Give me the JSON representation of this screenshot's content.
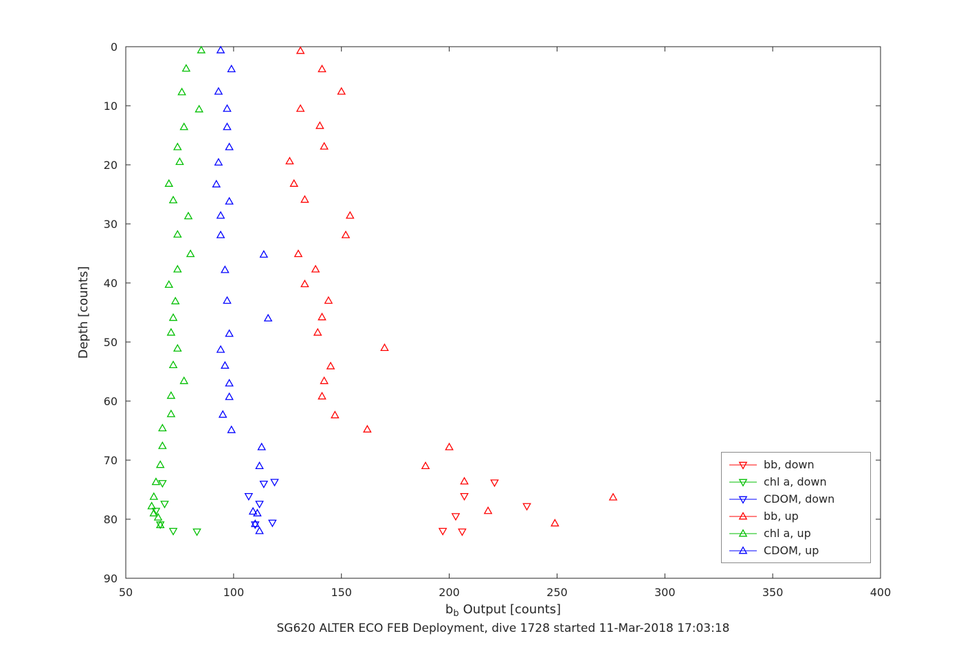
{
  "chart_data": {
    "type": "scatter",
    "title": "SG620 ALTER ECO FEB Deployment, dive 1728 started 11-Mar-2018 17:03:18",
    "ylabel": "Depth [counts]",
    "xlabel": {
      "main": "b",
      "sub": "b",
      "rest": "Output [counts]"
    },
    "xlim": [
      50,
      400
    ],
    "ylim": [
      0,
      90
    ],
    "y_inverted": true,
    "grid": false,
    "xticks": [
      50,
      100,
      150,
      200,
      250,
      300,
      350,
      400
    ],
    "yticks": [
      0,
      10,
      20,
      30,
      40,
      50,
      60,
      70,
      80,
      90
    ],
    "axis_color": "#262626",
    "legend_position": "lower-right",
    "series": [
      {
        "name": "bb, down",
        "color": "#ff0000",
        "marker": "triangle-down",
        "points": [
          [
            221,
            73.8
          ],
          [
            207,
            76.1
          ],
          [
            236,
            77.8
          ],
          [
            203,
            79.5
          ],
          [
            197,
            82.0
          ],
          [
            206,
            82.1
          ]
        ]
      },
      {
        "name": "chl a, down",
        "color": "#00bf00",
        "marker": "triangle-down",
        "points": [
          [
            67,
            73.9
          ],
          [
            68,
            77.4
          ],
          [
            64,
            78.6
          ],
          [
            66,
            80.9
          ],
          [
            72,
            82.0
          ],
          [
            83,
            82.1
          ]
        ]
      },
      {
        "name": "CDOM, down",
        "color": "#0000ff",
        "marker": "triangle-down",
        "points": [
          [
            119,
            73.7
          ],
          [
            114,
            74.0
          ],
          [
            107,
            76.1
          ],
          [
            112,
            77.4
          ],
          [
            118,
            80.6
          ],
          [
            110,
            80.9
          ]
        ]
      },
      {
        "name": "bb, up",
        "color": "#ff0000",
        "marker": "triangle-up",
        "points": [
          [
            131,
            0.7
          ],
          [
            141,
            3.8
          ],
          [
            150,
            7.6
          ],
          [
            131,
            10.5
          ],
          [
            140,
            13.4
          ],
          [
            142,
            16.9
          ],
          [
            126,
            19.4
          ],
          [
            128,
            23.2
          ],
          [
            133,
            25.9
          ],
          [
            154,
            28.6
          ],
          [
            152,
            31.9
          ],
          [
            130,
            35.1
          ],
          [
            138,
            37.7
          ],
          [
            133,
            40.2
          ],
          [
            144,
            43.0
          ],
          [
            141,
            45.8
          ],
          [
            139,
            48.4
          ],
          [
            170,
            51.0
          ],
          [
            145,
            54.1
          ],
          [
            142,
            56.6
          ],
          [
            141,
            59.2
          ],
          [
            147,
            62.4
          ],
          [
            162,
            64.8
          ],
          [
            200,
            67.8
          ],
          [
            189,
            71.0
          ],
          [
            207,
            73.6
          ],
          [
            218,
            78.6
          ],
          [
            249,
            80.7
          ],
          [
            276,
            76.3
          ]
        ]
      },
      {
        "name": "chl a, up",
        "color": "#00bf00",
        "marker": "triangle-up",
        "points": [
          [
            85,
            0.6
          ],
          [
            78,
            3.7
          ],
          [
            76,
            7.7
          ],
          [
            84,
            10.6
          ],
          [
            77,
            13.6
          ],
          [
            74,
            17.0
          ],
          [
            75,
            19.5
          ],
          [
            70,
            23.2
          ],
          [
            72,
            26.0
          ],
          [
            79,
            28.7
          ],
          [
            74,
            31.8
          ],
          [
            80,
            35.1
          ],
          [
            74,
            37.7
          ],
          [
            70,
            40.3
          ],
          [
            73,
            43.1
          ],
          [
            72,
            45.9
          ],
          [
            71,
            48.4
          ],
          [
            74,
            51.1
          ],
          [
            72,
            53.9
          ],
          [
            77,
            56.6
          ],
          [
            71,
            59.1
          ],
          [
            71,
            62.2
          ],
          [
            67,
            64.6
          ],
          [
            67,
            67.6
          ],
          [
            66,
            70.8
          ],
          [
            64,
            73.7
          ],
          [
            63,
            76.2
          ],
          [
            62,
            77.8
          ],
          [
            63,
            79.0
          ],
          [
            65,
            79.7
          ],
          [
            66,
            81.0
          ]
        ]
      },
      {
        "name": "CDOM, up",
        "color": "#0000ff",
        "marker": "triangle-up",
        "points": [
          [
            94,
            0.6
          ],
          [
            99,
            3.8
          ],
          [
            93,
            7.6
          ],
          [
            97,
            10.5
          ],
          [
            97,
            13.6
          ],
          [
            98,
            17.0
          ],
          [
            93,
            19.6
          ],
          [
            92,
            23.3
          ],
          [
            98,
            26.2
          ],
          [
            94,
            28.6
          ],
          [
            94,
            31.9
          ],
          [
            114,
            35.2
          ],
          [
            96,
            37.8
          ],
          [
            97,
            43.0
          ],
          [
            116,
            46.0
          ],
          [
            98,
            48.6
          ],
          [
            94,
            51.3
          ],
          [
            96,
            54.0
          ],
          [
            98,
            57.0
          ],
          [
            98,
            59.3
          ],
          [
            95,
            62.3
          ],
          [
            99,
            64.9
          ],
          [
            113,
            67.8
          ],
          [
            112,
            71.0
          ],
          [
            109,
            78.7
          ],
          [
            111,
            79.0
          ],
          [
            110,
            80.8
          ],
          [
            112,
            82.0
          ]
        ]
      }
    ]
  }
}
